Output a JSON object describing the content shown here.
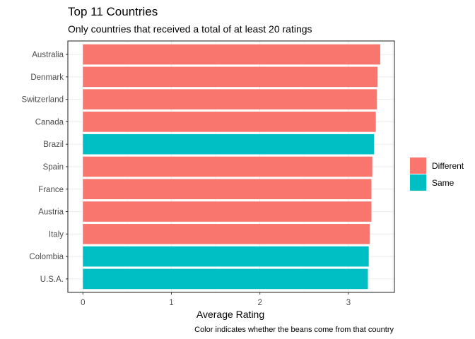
{
  "chart_data": {
    "type": "bar",
    "orientation": "horizontal",
    "title": "Top 11 Countries",
    "subtitle": "Only countries that received a total of at least 20 ratings",
    "xlabel": "Average Rating",
    "ylabel": "",
    "caption": "Color indicates whether the beans come from that country",
    "xlim": [
      0,
      3.5
    ],
    "x_ticks": [
      0,
      1,
      2,
      3
    ],
    "grid": true,
    "legend_position": "right",
    "categories": [
      "Australia",
      "Denmark",
      "Switzerland",
      "Canada",
      "Brazil",
      "Spain",
      "France",
      "Austria",
      "Italy",
      "Colombia",
      "U.S.A."
    ],
    "values": [
      3.36,
      3.33,
      3.32,
      3.31,
      3.29,
      3.27,
      3.26,
      3.26,
      3.24,
      3.23,
      3.22
    ],
    "groups": [
      "Different",
      "Different",
      "Different",
      "Different",
      "Same",
      "Different",
      "Different",
      "Different",
      "Different",
      "Same",
      "Same"
    ],
    "legend": [
      {
        "label": "Different",
        "color": "#F8766D"
      },
      {
        "label": "Same",
        "color": "#00BFC4"
      }
    ]
  }
}
